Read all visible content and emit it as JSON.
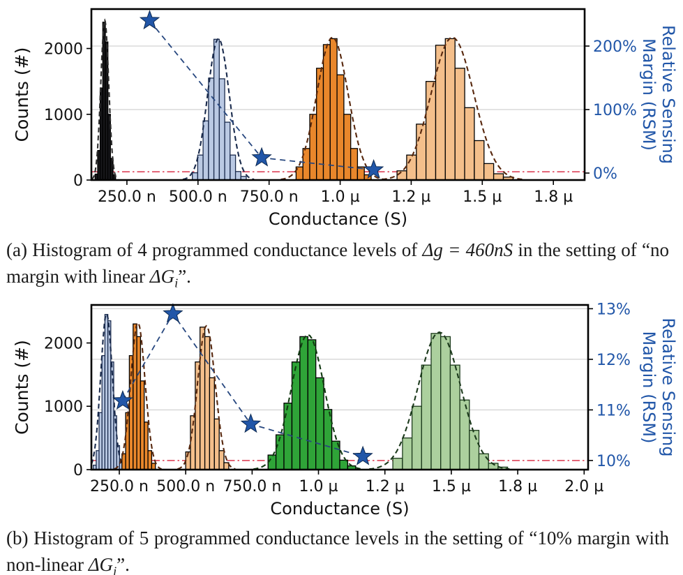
{
  "captions": {
    "a": {
      "s1": "(a) Histogram of 4 programmed conductance levels of ",
      "m1": "Δg = 460nS",
      "s2": " in the setting of “no margin with linear ",
      "m2": "ΔG",
      "m2sub": "i",
      "s3": "”."
    },
    "b": {
      "s1": "(b) Histogram of 5 programmed conductance levels in the setting of “10% margin with non-linear ",
      "m1": "ΔG",
      "m1sub": "i",
      "s2": "”."
    }
  },
  "colors": {
    "axis_blue": "#2156a8",
    "red_reference": "#dd4258",
    "grid": "#c7c7c7",
    "spine": "#000000"
  },
  "chart_data": [
    {
      "type": "bar",
      "subtype": "histogram-with-rsm-line",
      "xlabel": "Conductance (S)",
      "ylabel_left": "Counts (#)",
      "ylabel_right_lines": [
        "Relative Sensing",
        "Margin (RSM)"
      ],
      "x_unit_base": "nS",
      "x_domain": [
        125,
        1860
      ],
      "x_ticks": [
        {
          "value": 250,
          "label": "250.0 n"
        },
        {
          "value": 500,
          "label": "500.0 n"
        },
        {
          "value": 750,
          "label": "750.0 n"
        },
        {
          "value": 1000,
          "label": "1.0 µ"
        },
        {
          "value": 1250,
          "label": "1.2 µ"
        },
        {
          "value": 1500,
          "label": "1.5 µ"
        },
        {
          "value": 1750,
          "label": "1.8 µ"
        }
      ],
      "counts_domain": [
        0,
        2600
      ],
      "counts_ticks": [
        {
          "value": 0,
          "label": "0"
        },
        {
          "value": 1000,
          "label": "1000"
        },
        {
          "value": 2000,
          "label": "2000"
        }
      ],
      "rsm_domain": [
        -11,
        258.2
      ],
      "rsm_ticks": [
        {
          "value": 0,
          "label": "0%"
        },
        {
          "value": 100,
          "label": "100%"
        },
        {
          "value": 200,
          "label": "200%"
        }
      ],
      "gridlines_rsm": [
        100,
        200
      ],
      "reference_line": {
        "rsm": 2,
        "color": "#dd4258"
      },
      "histograms": [
        {
          "name": "level-1",
          "fill": "#17171a",
          "edge": "#000000",
          "curve": "#2f2f2f",
          "bin_start": 138,
          "bin_width": 9,
          "heights": [
            90,
            450,
            1400,
            2400,
            2100,
            1000,
            330,
            80
          ],
          "fit": {
            "amp": 2430,
            "mu": 172,
            "sigma": 14
          }
        },
        {
          "name": "level-2",
          "fill": "#bac9e3",
          "edge": "#1a2b4d",
          "curve": "#1a2b4d",
          "bin_start": 480,
          "bin_width": 19,
          "heights": [
            110,
            380,
            900,
            1550,
            2140,
            1540,
            880,
            380,
            130,
            55
          ],
          "fit": {
            "amp": 2150,
            "mu": 572,
            "sigma": 38
          }
        },
        {
          "name": "level-3",
          "fill": "#e9872b",
          "edge": "#000000",
          "curve": "#58280e",
          "bin_start": 845,
          "bin_width": 24,
          "heights": [
            200,
            480,
            1000,
            1700,
            2060,
            2150,
            1600,
            1000,
            480,
            200,
            80
          ],
          "fit": {
            "amp": 2170,
            "mu": 973,
            "sigma": 55
          }
        },
        {
          "name": "level-4",
          "fill": "#f4bf8b",
          "edge": "#000000",
          "curve": "#58280e",
          "bin_start": 1200,
          "bin_width": 34,
          "heights": [
            140,
            380,
            850,
            1500,
            2050,
            2150,
            1700,
            1100,
            600,
            250,
            95,
            45
          ],
          "fit": {
            "amp": 2170,
            "mu": 1395,
            "sigma": 75
          }
        }
      ],
      "rsm_series": {
        "name": "relative-sensing-margin",
        "marker": "star",
        "marker_color": "#2156a8",
        "marker_edge": "#0d2a52",
        "line_color": "#27477f",
        "points": [
          [
            330,
            240
          ],
          [
            724,
            24
          ],
          [
            1118,
            5
          ]
        ]
      }
    },
    {
      "type": "bar",
      "subtype": "histogram-with-rsm-line",
      "xlabel": "Conductance (S)",
      "ylabel_left": "Counts (#)",
      "ylabel_right_lines": [
        "Relative Sensing",
        "Margin (RSM)"
      ],
      "x_unit_base": "nS",
      "x_domain": [
        145,
        2015
      ],
      "x_ticks": [
        {
          "value": 250,
          "label": "250.0 n"
        },
        {
          "value": 500,
          "label": "500.0 n"
        },
        {
          "value": 750,
          "label": "750.0 n"
        },
        {
          "value": 1000,
          "label": "1.0 µ"
        },
        {
          "value": 1250,
          "label": "1.2 µ"
        },
        {
          "value": 1500,
          "label": "1.5 µ"
        },
        {
          "value": 1750,
          "label": "1.8 µ"
        },
        {
          "value": 2000,
          "label": "2.0 µ"
        }
      ],
      "counts_domain": [
        0,
        2600
      ],
      "counts_ticks": [
        {
          "value": 0,
          "label": "0"
        },
        {
          "value": 1000,
          "label": "1000"
        },
        {
          "value": 2000,
          "label": "2000"
        }
      ],
      "rsm_domain": [
        9.82,
        13.075
      ],
      "rsm_ticks": [
        {
          "value": 10,
          "label": "10%"
        },
        {
          "value": 11,
          "label": "11%"
        },
        {
          "value": 12,
          "label": "12%"
        },
        {
          "value": 13,
          "label": "13%"
        }
      ],
      "gridlines_rsm": [
        11,
        12,
        13
      ],
      "reference_line": {
        "rsm": 10,
        "color": "#dd4258"
      },
      "histograms": [
        {
          "name": "level-1",
          "fill": "#bac9e3",
          "edge": "#1a2b4d",
          "curve": "#1a2b4d",
          "bin_start": 152,
          "bin_width": 11,
          "heights": [
            70,
            300,
            900,
            1800,
            2450,
            2350,
            1700,
            850,
            380,
            130
          ],
          "fit": {
            "amp": 2460,
            "mu": 202,
            "sigma": 22
          }
        },
        {
          "name": "level-2",
          "fill": "#e9872b",
          "edge": "#000000",
          "curve": "#58280e",
          "bin_start": 260,
          "bin_width": 14,
          "heights": [
            250,
            900,
            1800,
            2300,
            2100,
            1400,
            750,
            300,
            100
          ],
          "fit": {
            "amp": 2320,
            "mu": 320,
            "sigma": 27
          }
        },
        {
          "name": "level-3",
          "fill": "#f4bf8b",
          "edge": "#000000",
          "curve": "#58280e",
          "bin_start": 500,
          "bin_width": 18,
          "heights": [
            280,
            850,
            1700,
            2250,
            2100,
            1450,
            800,
            300,
            110
          ],
          "fit": {
            "amp": 2270,
            "mu": 578,
            "sigma": 33
          }
        },
        {
          "name": "level-4",
          "fill": "#2fa438",
          "edge": "#000000",
          "curve": "#123a12",
          "bin_start": 810,
          "bin_width": 30,
          "heights": [
            230,
            550,
            1050,
            1700,
            2100,
            2050,
            1450,
            950,
            450,
            150,
            60
          ],
          "fit": {
            "amp": 2130,
            "mu": 960,
            "sigma": 62
          }
        },
        {
          "name": "level-5",
          "fill": "#acd09e",
          "edge": "#1c3a1c",
          "curve": "#1c3a1c",
          "bin_start": 1280,
          "bin_width": 36,
          "heights": [
            180,
            500,
            1000,
            1650,
            2150,
            2100,
            1650,
            1100,
            620,
            250,
            100,
            40
          ],
          "fit": {
            "amp": 2170,
            "mu": 1455,
            "sigma": 80
          }
        }
      ],
      "rsm_series": {
        "name": "relative-sensing-margin",
        "marker": "star",
        "marker_color": "#2156a8",
        "marker_edge": "#0d2a52",
        "line_color": "#27477f",
        "points": [
          [
            263,
            11.18
          ],
          [
            452,
            12.9
          ],
          [
            745,
            10.72
          ],
          [
            1167,
            10.08
          ]
        ]
      }
    }
  ]
}
